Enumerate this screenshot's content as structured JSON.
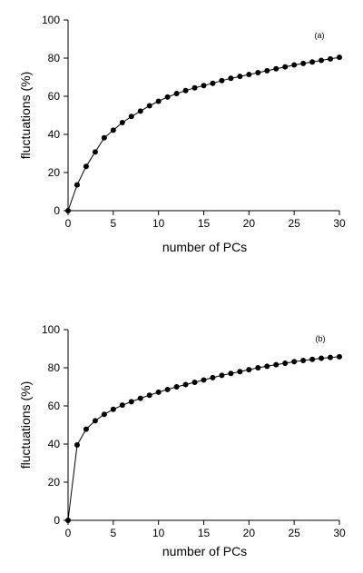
{
  "chart_data": [
    {
      "type": "line",
      "panel_label": "(a)",
      "xlabel": "number of PCs",
      "ylabel": "fluctuations (%)",
      "xlim": [
        0,
        30
      ],
      "ylim": [
        0,
        100
      ],
      "xticks": [
        0,
        5,
        10,
        15,
        20,
        25,
        30
      ],
      "yticks": [
        0,
        20,
        40,
        60,
        80,
        100
      ],
      "grid": false,
      "x": [
        0,
        1,
        2,
        3,
        4,
        5,
        6,
        7,
        8,
        9,
        10,
        11,
        12,
        13,
        14,
        15,
        16,
        17,
        18,
        19,
        20,
        21,
        22,
        23,
        24,
        25,
        26,
        27,
        28,
        29,
        30
      ],
      "series": [
        {
          "values": [
            0,
            13.5,
            23.2,
            30.8,
            38.2,
            42.2,
            46.2,
            49.4,
            52.2,
            55.0,
            57.4,
            59.6,
            61.4,
            63.0,
            64.4,
            65.6,
            66.8,
            68.2,
            69.4,
            70.4,
            71.4,
            72.4,
            73.4,
            74.4,
            75.4,
            76.4,
            77.2,
            78.0,
            78.8,
            79.6,
            80.4
          ]
        }
      ]
    },
    {
      "type": "line",
      "panel_label": "(b)",
      "xlabel": "number of PCs",
      "ylabel": "fluctuations (%)",
      "xlim": [
        0,
        30
      ],
      "ylim": [
        0,
        100
      ],
      "xticks": [
        0,
        5,
        10,
        15,
        20,
        25,
        30
      ],
      "yticks": [
        0,
        20,
        40,
        60,
        80,
        100
      ],
      "grid": false,
      "x": [
        0,
        1,
        2,
        3,
        4,
        5,
        6,
        7,
        8,
        9,
        10,
        11,
        12,
        13,
        14,
        15,
        16,
        17,
        18,
        19,
        20,
        21,
        22,
        23,
        24,
        25,
        26,
        27,
        28,
        29,
        30
      ],
      "series": [
        {
          "values": [
            0,
            39.5,
            47.8,
            52.2,
            55.6,
            58.2,
            60.4,
            62.2,
            64.0,
            65.6,
            67.2,
            68.6,
            70.0,
            71.2,
            72.4,
            73.6,
            74.8,
            76.0,
            77.0,
            78.0,
            79.0,
            80.0,
            80.8,
            81.6,
            82.4,
            83.2,
            83.8,
            84.4,
            85.0,
            85.4,
            85.8
          ]
        }
      ]
    }
  ]
}
